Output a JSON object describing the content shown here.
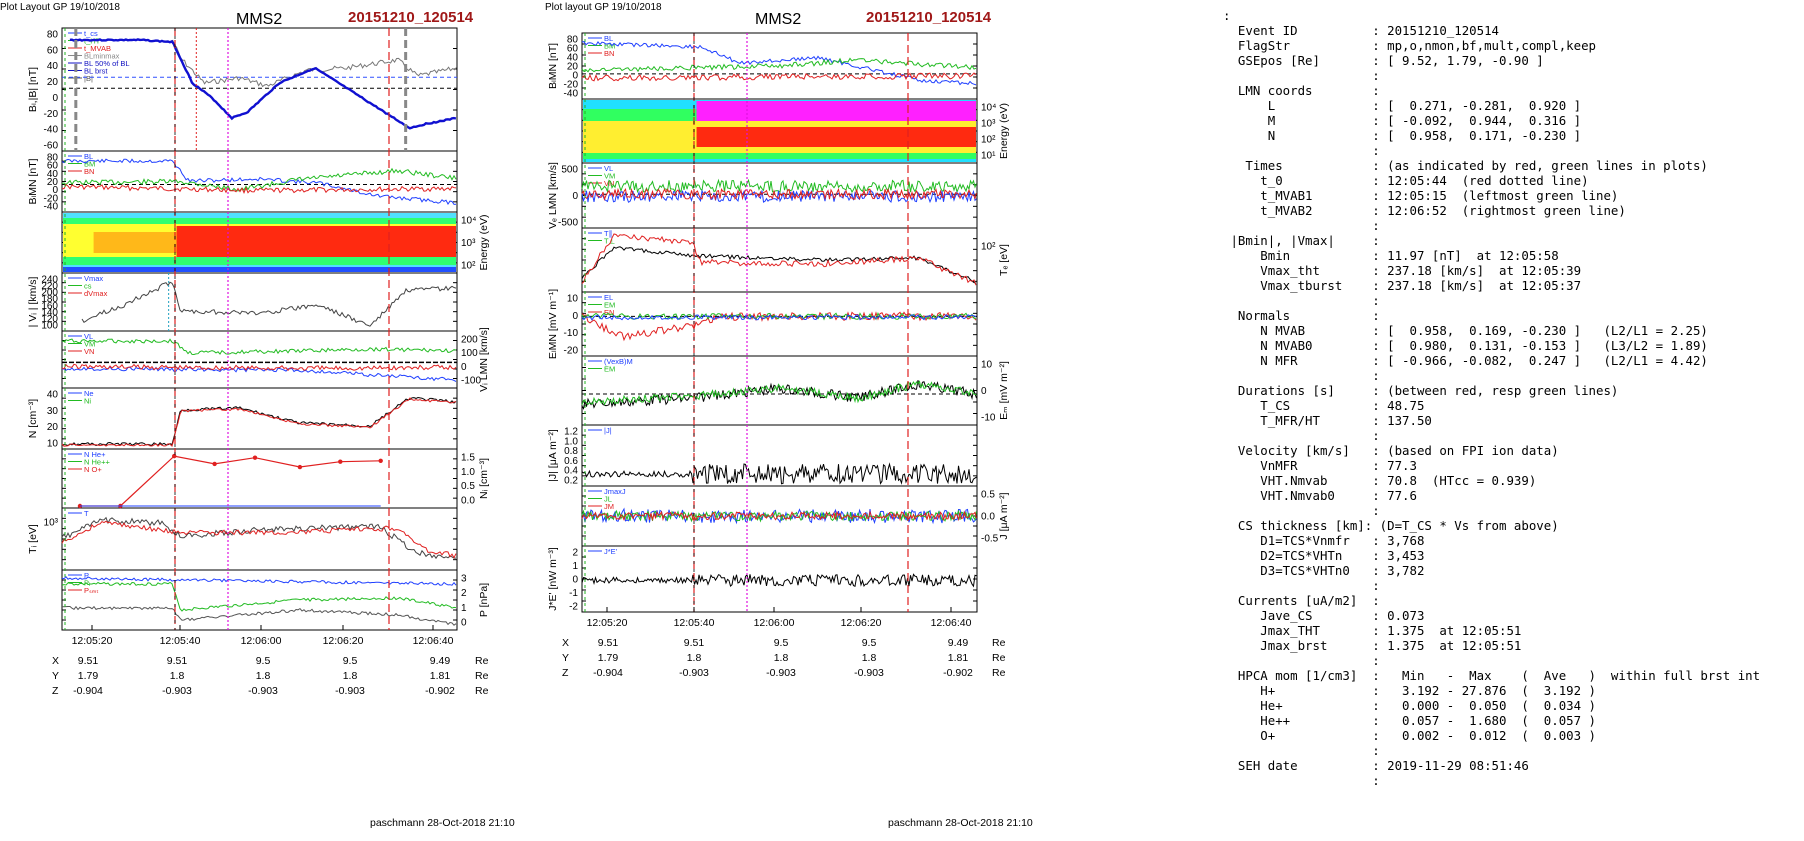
{
  "figures": [
    {
      "header": "Plot Layout GP 19/10/2018",
      "spacecraft": "MMS2",
      "event": "20151210_120514",
      "footer": "paschmann 28-Oct-2018 21:10",
      "time_ticks": [
        "12:05:20",
        "12:05:40",
        "12:06:00",
        "12:06:20",
        "12:06:40"
      ],
      "position_rows": [
        {
          "label": "X",
          "values": [
            "9.51",
            "9.51",
            "9.5",
            "9.5",
            "9.49"
          ],
          "unit": "Re"
        },
        {
          "label": "Y",
          "values": [
            "1.79",
            "1.8",
            "1.8",
            "1.8",
            "1.81"
          ],
          "unit": "Re"
        },
        {
          "label": "Z",
          "values": [
            "-0.904",
            "-0.903",
            "-0.903",
            "-0.903",
            "-0.902"
          ],
          "unit": "Re"
        }
      ],
      "panels": [
        {
          "label": "Bₗ,|B| [nT]",
          "right_label": "",
          "y_ticks": [
            "80",
            "60",
            "40",
            "20",
            "0",
            "-20",
            "-40",
            "-60"
          ],
          "right_ticks": [],
          "legend": [
            "t_cs",
            "t_HT",
            "t_MVAB",
            "BLminmax",
            "BL 50% of BL",
            "BL  brst",
            "|B|"
          ]
        },
        {
          "label": "BₗMN [nT]",
          "right_label": "",
          "y_ticks": [
            "80",
            "60",
            "40",
            "20",
            "0",
            "-20",
            "-40"
          ],
          "right_ticks": [],
          "legend": [
            "BL",
            "BM",
            "BN"
          ]
        },
        {
          "label": "",
          "right_label": "Energy (eV)",
          "y_ticks": [],
          "right_ticks": [
            "10⁴",
            "10³",
            "10²"
          ],
          "legend": []
        },
        {
          "label": "| Vᵢ | [km/s]",
          "right_label": "",
          "y_ticks": [
            "240",
            "220",
            "200",
            "180",
            "160",
            "140",
            "120",
            "100"
          ],
          "right_ticks": [],
          "legend": [
            "Vmax",
            "cs",
            "dVmax"
          ]
        },
        {
          "label": "",
          "right_label": "Vᵢ LMN [km/s]",
          "y_ticks": [],
          "right_ticks": [
            "200",
            "100",
            "0",
            "-100"
          ],
          "legend": [
            "VL",
            "VM",
            "VN"
          ]
        },
        {
          "label": "N [cm⁻³]",
          "right_label": "",
          "y_ticks": [
            "40",
            "30",
            "20",
            "10"
          ],
          "right_ticks": [],
          "legend": [
            "Ne",
            "Ni"
          ]
        },
        {
          "label": "",
          "right_label": "Nᵢ [cm⁻³]",
          "y_ticks": [],
          "right_ticks": [
            "1.5",
            "1.0",
            "0.5",
            "0.0"
          ],
          "legend": [
            "N  He+",
            "N  He++",
            "N  O+"
          ]
        },
        {
          "label": "Tᵢ [eV]",
          "right_label": "",
          "y_ticks": [
            "10³"
          ],
          "right_ticks": [],
          "legend": [
            "T"
          ]
        },
        {
          "label": "",
          "right_label": "P [nPa]",
          "y_ticks": [],
          "right_ticks": [
            "3",
            "2",
            "1",
            "0"
          ],
          "legend": [
            "P",
            "Pᵢ",
            "Pₛₘₜ"
          ]
        }
      ]
    },
    {
      "header": "Plot layout GP 19/10/2018",
      "spacecraft": "MMS2",
      "event": "20151210_120514",
      "footer": "paschmann 28-Oct-2018 21:10",
      "time_ticks": [
        "12:05:20",
        "12:05:40",
        "12:06:00",
        "12:06:20",
        "12:06:40"
      ],
      "position_rows": [
        {
          "label": "X",
          "values": [
            "9.51",
            "9.51",
            "9.5",
            "9.5",
            "9.49"
          ],
          "unit": "Re"
        },
        {
          "label": "Y",
          "values": [
            "1.79",
            "1.8",
            "1.8",
            "1.8",
            "1.81"
          ],
          "unit": "Re"
        },
        {
          "label": "Z",
          "values": [
            "-0.904",
            "-0.903",
            "-0.903",
            "-0.903",
            "-0.902"
          ],
          "unit": "Re"
        }
      ],
      "panels": [
        {
          "label": "BₗMN [nT]",
          "right_label": "",
          "y_ticks": [
            "80",
            "60",
            "40",
            "20",
            "0",
            "-20",
            "-40"
          ],
          "right_ticks": [],
          "legend": [
            "BL",
            "BM",
            "BN"
          ]
        },
        {
          "label": "",
          "right_label": "Energy (eV)",
          "y_ticks": [],
          "right_ticks": [
            "10⁴",
            "10³",
            "10²",
            "10¹"
          ],
          "legend": []
        },
        {
          "label": "Vₑ LMN [km/s]",
          "right_label": "",
          "y_ticks": [
            "500",
            "0",
            "-500"
          ],
          "right_ticks": [],
          "legend": [
            "VL",
            "VM",
            "VN"
          ]
        },
        {
          "label": "",
          "right_label": "Tₑ [eV]",
          "y_ticks": [],
          "right_ticks": [
            "10²"
          ],
          "legend": [
            "T∥",
            "T⊥"
          ]
        },
        {
          "label": "EₗMN [mV m⁻¹]",
          "right_label": "",
          "y_ticks": [
            "10",
            "0",
            "-10",
            "-20"
          ],
          "right_ticks": [],
          "legend": [
            "EL",
            "EM",
            "EN"
          ]
        },
        {
          "label": "",
          "right_label": "Eₘ [mV m⁻²]",
          "y_ticks": [],
          "right_ticks": [
            "10",
            "0",
            "-10"
          ],
          "legend": [
            "(VexB)M",
            "EM"
          ]
        },
        {
          "label": "|J| [μA m⁻²]",
          "right_label": "",
          "y_ticks": [
            "1.2",
            "1.0",
            "0.8",
            "0.6",
            "0.4",
            "0.2"
          ],
          "right_ticks": [],
          "legend": [
            "|J|"
          ]
        },
        {
          "label": "",
          "right_label": "J [μA m⁻²]",
          "y_ticks": [],
          "right_ticks": [
            "0.5",
            "0.0",
            "-0.5"
          ],
          "legend": [
            "JmaxJ",
            "JL",
            "JM"
          ]
        },
        {
          "label": "J*E' [nW m⁻³]",
          "right_label": "",
          "y_ticks": [
            "2",
            "1",
            "0",
            "-1",
            "-2"
          ],
          "right_ticks": [],
          "legend": [
            "J*E'"
          ]
        }
      ]
    }
  ],
  "summary_lines": [
    ":",
    "  Event ID          : 20151210_120514",
    "  FlagStr           : mp,o,nmon,bf,mult,compl,keep",
    "  GSEpos [Re]       : [ 9.52, 1.79, -0.90 ]",
    "                    :",
    "  LMN coords        :",
    "      L             : [  0.271, -0.281,  0.920 ]",
    "      M             : [ -0.092,  0.944,  0.316 ]",
    "      N             : [  0.958,  0.171, -0.230 ]",
    "                    :",
    "   Times            : (as indicated by red, green lines in plots)",
    "     t_0            : 12:05:44  (red dotted line)",
    "     t_MVAB1        : 12:05:15  (leftmost green line)",
    "     t_MVAB2        : 12:06:52  (rightmost green line)",
    "                    :",
    " |Bmin|, |Vmax|     :",
    "     Bmin           : 11.97 [nT]  at 12:05:58",
    "     Vmax_tht       : 237.18 [km/s]  at 12:05:39",
    "     Vmax_tburst    : 237.18 [km/s]  at 12:05:37",
    "                    :",
    "  Normals           :",
    "     N MVAB         : [  0.958,  0.169, -0.230 ]   (L2/L1 = 2.25)",
    "     N MVAB0        : [  0.980,  0.131, -0.153 ]   (L3/L2 = 1.89)",
    "     N MFR          : [ -0.966, -0.082,  0.247 ]   (L2/L1 = 4.42)",
    "                    :",
    "  Durations [s]     : (between red, resp green lines)",
    "     T_CS           : 48.75",
    "     T_MFR/HT       : 137.50",
    "                    :",
    "  Velocity [km/s]   : (based on FPI ion data)",
    "     VnMFR          : 77.3",
    "     VHT.Nmvab      : 70.8  (HTcc = 0.939)",
    "     VHT.Nmvab0     : 77.6",
    "                    :",
    "  CS thickness [km]: (D=T_CS * Vs from above)",
    "     D1=TCS*Vnmfr   : 3,768",
    "     D2=TCS*VHTn    : 3,453",
    "     D3=TCS*VHTn0   : 3,782",
    "                    :",
    "  Currents [uA/m2]  :",
    "     Jave_CS        : 0.073",
    "     Jmax_THT       : 1.375  at 12:05:51",
    "     Jmax_brst      : 1.375  at 12:05:51",
    "                    :",
    "  HPCA mom [1/cm3]  :   Min   -  Max    (  Ave   )  within full brst int",
    "     H+             :   3.192 - 27.876  (  3.192 )",
    "     He+            :   0.000 -  0.050  (  0.034 )",
    "     He++           :   0.057 -  1.680  (  0.057 )",
    "     O+             :   0.002 -  0.012  (  0.003 )",
    "                    :",
    "  SEH date          : 2019-11-29 08:51:46",
    "                    :"
  ],
  "chart_data": [
    {
      "type": "line",
      "title": "MMS2 20151210_120514",
      "ylabel": "Bₗ,|B| [nT]",
      "ylim": [
        -60,
        80
      ],
      "x_unit": "time",
      "series": [
        {
          "name": "BL brst",
          "x": [
            "12:05:15",
            "12:05:30",
            "12:05:38",
            "12:05:44",
            "12:05:48",
            "12:05:53",
            "12:05:58",
            "12:06:05",
            "12:06:10",
            "12:06:15",
            "12:06:25",
            "12:06:30",
            "12:06:40"
          ],
          "values": [
            75,
            75,
            73,
            30,
            10,
            -25,
            -28,
            15,
            35,
            25,
            -15,
            -42,
            -30
          ]
        },
        {
          "name": "|B|",
          "x": [
            "12:05:15",
            "12:05:38",
            "12:05:44",
            "12:05:52",
            "12:05:58",
            "12:06:10",
            "12:06:20",
            "12:06:30",
            "12:06:40"
          ],
          "values": [
            75,
            74,
            40,
            40,
            12,
            40,
            35,
            50,
            40
          ]
        }
      ]
    },
    {
      "type": "line",
      "ylabel": "Nᵢ [cm⁻³]",
      "ylim": [
        0,
        1.7
      ],
      "series": [
        {
          "name": "N He++",
          "x": [
            "12:05:16",
            "12:05:25",
            "12:05:37",
            "12:05:46",
            "12:05:55",
            "12:06:05",
            "12:06:14",
            "12:06:23"
          ],
          "values": [
            0.0,
            0.0,
            1.6,
            1.35,
            1.55,
            1.25,
            1.42,
            1.45
          ]
        }
      ]
    }
  ]
}
